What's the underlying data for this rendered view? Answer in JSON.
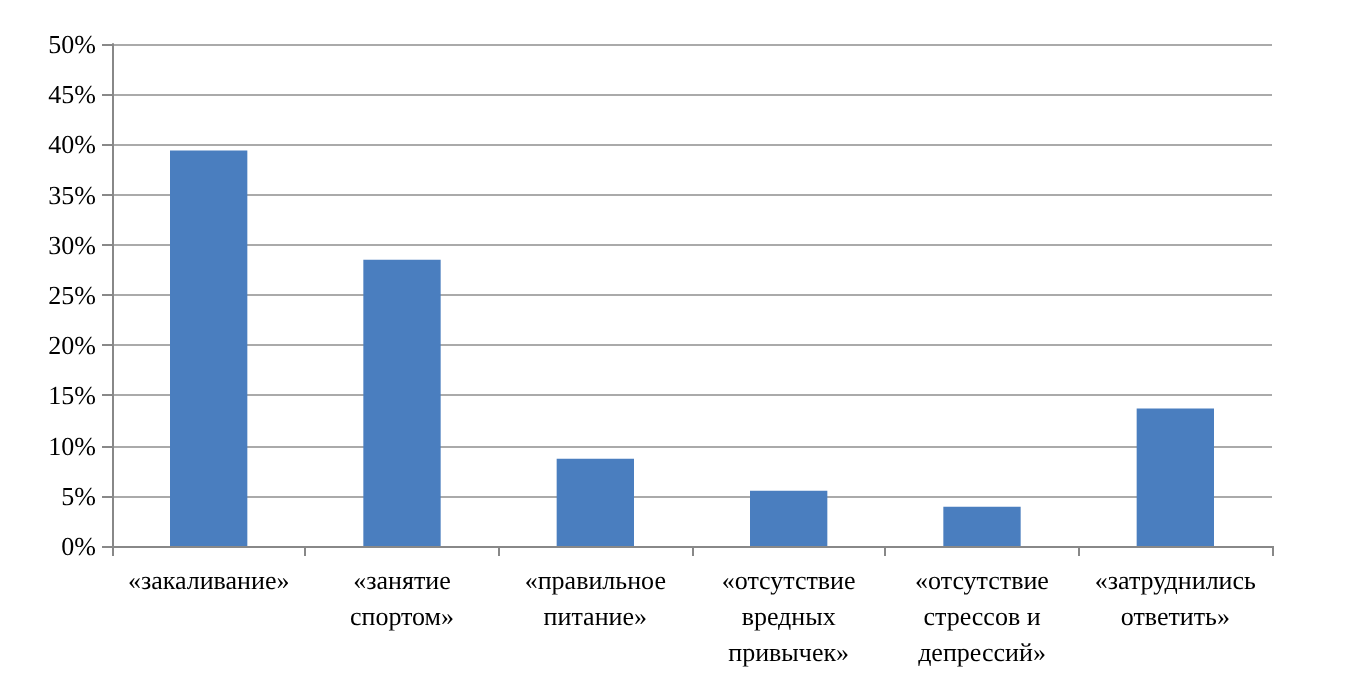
{
  "chart_data": {
    "type": "bar",
    "categories": [
      "«закаливание»",
      "«занятие\nспортом»",
      "«правильное\nпитание»",
      "«отсутствие\nвредных\nпривычек»",
      "«отсутствие\nстрессов и\nдепрессий»",
      "«затруднились\nответить»"
    ],
    "values": [
      39.4,
      28.5,
      8.7,
      5.5,
      3.9,
      13.7
    ],
    "color": "#4a7ebf",
    "ylim": [
      0,
      50
    ],
    "yticks": [
      {
        "value": 0,
        "label": "0%"
      },
      {
        "value": 5,
        "label": "5%"
      },
      {
        "value": 10,
        "label": "10%"
      },
      {
        "value": 15,
        "label": "15%"
      },
      {
        "value": 20,
        "label": "20%"
      },
      {
        "value": 25,
        "label": "25%"
      },
      {
        "value": 30,
        "label": "30%"
      },
      {
        "value": 35,
        "label": "35%"
      },
      {
        "value": 40,
        "label": "40%"
      },
      {
        "value": 45,
        "label": "45%"
      },
      {
        "value": 50,
        "label": "50%"
      }
    ],
    "grid": "y"
  }
}
